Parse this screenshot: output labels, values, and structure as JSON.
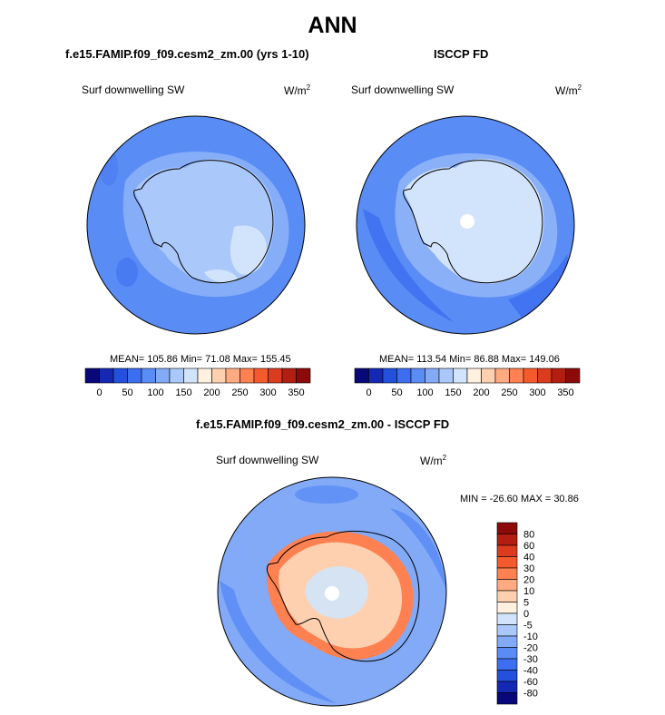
{
  "main_title": "ANN",
  "panels": [
    {
      "title": "f.e15.FAMIP.f09_f09.cesm2_zm.00 (yrs 1-10)",
      "variable": "Surf downwelling SW",
      "units": "W/m",
      "units_sup": "2",
      "stats": "MEAN= 105.86  Min=  71.08  Max= 155.45"
    },
    {
      "title": "ISCCP FD",
      "variable": "Surf downwelling SW",
      "units": "W/m",
      "units_sup": "2",
      "stats": "MEAN= 113.54  Min=  86.88  Max= 149.06"
    },
    {
      "title": "f.e15.FAMIP.f09_f09.cesm2_zm.00 - ISCCP FD",
      "variable": "Surf downwelling SW",
      "units": "W/m",
      "units_sup": "2",
      "stats": "MIN = -26.60 MAX =  30.86"
    }
  ],
  "chart_data": [
    {
      "type": "heatmap",
      "projection": "south-polar-stereographic",
      "title": "f.e15.FAMIP.f09_f09.cesm2_zm.00 (yrs 1-10)",
      "variable": "Surf downwelling SW",
      "units": "W/m2",
      "mean": 105.86,
      "min": 71.08,
      "max": 155.45,
      "colorbar": {
        "orientation": "horizontal",
        "ticks": [
          "0",
          "50",
          "100",
          "150",
          "200",
          "250",
          "300",
          "350"
        ],
        "colors": [
          "#08087a",
          "#1428b4",
          "#2350dc",
          "#3c6ef0",
          "#5a8cf5",
          "#82aaf7",
          "#aac8fa",
          "#d2e4fb",
          "#fff0e0",
          "#ffd0b0",
          "#ffaa80",
          "#ff8050",
          "#f55a2d",
          "#dc3c1e",
          "#b41e10",
          "#8c0a0a"
        ]
      },
      "regions": [
        {
          "region": "open ocean",
          "approx_value": 95
        },
        {
          "region": "Antarctic continent",
          "approx_value": 125
        },
        {
          "region": "East Antarctic interior",
          "approx_value": 145
        }
      ]
    },
    {
      "type": "heatmap",
      "projection": "south-polar-stereographic",
      "title": "ISCCP FD",
      "variable": "Surf downwelling SW",
      "units": "W/m2",
      "mean": 113.54,
      "min": 86.88,
      "max": 149.06,
      "colorbar": {
        "orientation": "horizontal",
        "ticks": [
          "0",
          "50",
          "100",
          "150",
          "200",
          "250",
          "300",
          "350"
        ],
        "colors": [
          "#08087a",
          "#1428b4",
          "#2350dc",
          "#3c6ef0",
          "#5a8cf5",
          "#82aaf7",
          "#aac8fa",
          "#d2e4fb",
          "#fff0e0",
          "#ffd0b0",
          "#ffaa80",
          "#ff8050",
          "#f55a2d",
          "#dc3c1e",
          "#b41e10",
          "#8c0a0a"
        ]
      },
      "regions": [
        {
          "region": "open ocean",
          "approx_value": 105
        },
        {
          "region": "Antarctic continent",
          "approx_value": 140
        },
        {
          "region": "pole (missing data)",
          "approx_value": null
        }
      ]
    },
    {
      "type": "heatmap",
      "projection": "south-polar-stereographic",
      "title": "f.e15.FAMIP.f09_f09.cesm2_zm.00 - ISCCP FD",
      "variable": "Surf downwelling SW",
      "units": "W/m2",
      "min": -26.6,
      "max": 30.86,
      "colorbar": {
        "orientation": "vertical",
        "ticks": [
          "80",
          "60",
          "40",
          "30",
          "20",
          "10",
          "5",
          "0",
          "-5",
          "-10",
          "-20",
          "-30",
          "-40",
          "-60",
          "-80"
        ],
        "colors": [
          "#8c0a0a",
          "#b41e10",
          "#dc3c1e",
          "#f55a2d",
          "#ff8050",
          "#ffaa80",
          "#ffd0b0",
          "#fff0e0",
          "#d2e4fb",
          "#aac8fa",
          "#82aaf7",
          "#5a8cf5",
          "#3c6ef0",
          "#2350dc",
          "#1428b4",
          "#08087a"
        ]
      },
      "regions": [
        {
          "region": "open ocean",
          "approx_value": -10
        },
        {
          "region": "Antarctic coast",
          "approx_value": 15
        },
        {
          "region": "Antarctic interior",
          "approx_value": 0
        }
      ]
    }
  ],
  "colors": {
    "ocean_p1": "#5a8cf5",
    "land_p1": "#aac8fa",
    "land_p1_high": "#d2e4fb",
    "ocean_p2": "#5a8cf5",
    "ocean_p2_dark": "#3c6ef0",
    "land_p2": "#d2e4fb",
    "diff_ocean": "#82aaf7",
    "diff_ocean_low": "#5a8cf5",
    "diff_coast": "#ff8050",
    "diff_land": "#ffd0b0",
    "diff_interior": "#d2e4fb"
  }
}
